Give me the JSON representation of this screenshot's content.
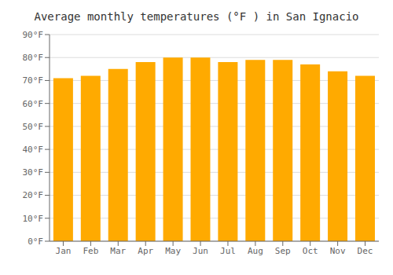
{
  "chart_data": {
    "type": "bar",
    "title": "Average monthly temperatures (°F ) in San Ignacio",
    "categories": [
      "Jan",
      "Feb",
      "Mar",
      "Apr",
      "May",
      "Jun",
      "Jul",
      "Aug",
      "Sep",
      "Oct",
      "Nov",
      "Dec"
    ],
    "values": [
      71,
      72,
      75,
      78,
      80,
      80,
      78,
      79,
      79,
      77,
      74,
      72
    ],
    "color": "#FFAA00",
    "ylim": [
      0,
      90
    ],
    "yticks": [
      {
        "value": 0,
        "label": "0°F"
      },
      {
        "value": 10,
        "label": "10°F"
      },
      {
        "value": 20,
        "label": "20°F"
      },
      {
        "value": 30,
        "label": "30°F"
      },
      {
        "value": 40,
        "label": "40°F"
      },
      {
        "value": 50,
        "label": "50°F"
      },
      {
        "value": 60,
        "label": "60°F"
      },
      {
        "value": 70,
        "label": "70°F"
      },
      {
        "value": 80,
        "label": "80°F"
      },
      {
        "value": 90,
        "label": "90°F"
      }
    ],
    "grid": true
  }
}
